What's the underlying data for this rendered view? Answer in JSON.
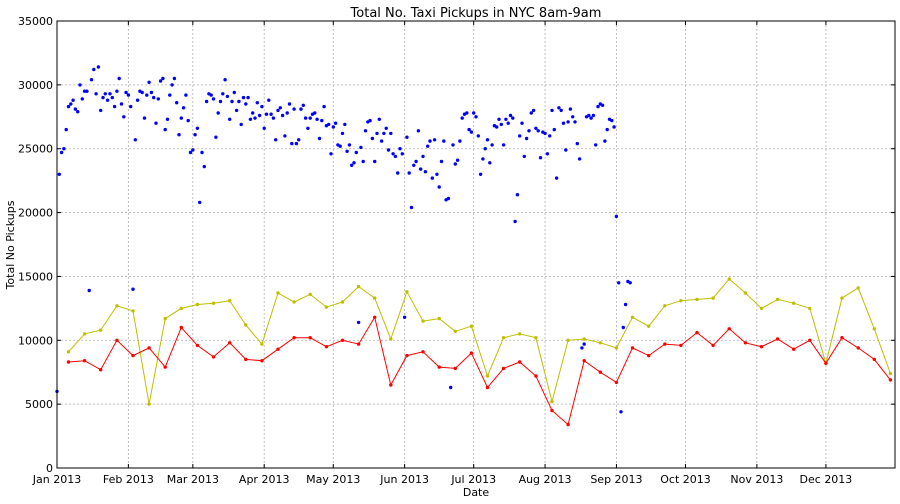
{
  "chart_data": {
    "type": "line",
    "title": "Total No. Taxi Pickups in NYC 8am-9am",
    "xlabel": "Date",
    "ylabel": "Total No Pickups",
    "xlim": [
      "2013-01-01",
      "2013-12-31"
    ],
    "ylim": [
      0,
      35000
    ],
    "grid": true,
    "x_ticks": [
      {
        "date": "2013-01-01",
        "label": "Jan 2013"
      },
      {
        "date": "2013-02-01",
        "label": "Feb 2013"
      },
      {
        "date": "2013-03-01",
        "label": "Mar 2013"
      },
      {
        "date": "2013-04-01",
        "label": "Apr 2013"
      },
      {
        "date": "2013-05-01",
        "label": "May 2013"
      },
      {
        "date": "2013-06-01",
        "label": "Jun 2013"
      },
      {
        "date": "2013-07-01",
        "label": "Jul 2013"
      },
      {
        "date": "2013-08-01",
        "label": "Aug 2013"
      },
      {
        "date": "2013-09-01",
        "label": "Sep 2013"
      },
      {
        "date": "2013-10-01",
        "label": "Oct 2013"
      },
      {
        "date": "2013-11-01",
        "label": "Nov 2013"
      },
      {
        "date": "2013-12-01",
        "label": "Dec 2013"
      }
    ],
    "y_ticks": [
      0,
      5000,
      10000,
      15000,
      20000,
      25000,
      30000,
      35000
    ],
    "series": [
      {
        "color": "#0000ff",
        "style": "scatter",
        "start_date": "2013-01-01",
        "values": [
          6000,
          23000,
          24700,
          25000,
          26500,
          28300,
          28500,
          28800,
          28100,
          27900,
          30000,
          28900,
          29500,
          29500,
          13900,
          30400,
          31200,
          29300,
          31400,
          28000,
          29000,
          29300,
          28800,
          29300,
          29000,
          28300,
          29500,
          30500,
          28500,
          27500,
          29400,
          29200,
          28300,
          14000,
          25700,
          28800,
          29500,
          29400,
          27400,
          29200,
          30200,
          29400,
          29000,
          27000,
          28900,
          30300,
          30500,
          26500,
          27300,
          29200,
          30000,
          30500,
          28600,
          26100,
          27400,
          28200,
          29200,
          27200,
          24700,
          24900,
          26100,
          26600,
          20800,
          24700,
          23600,
          28700,
          29300,
          29200,
          28900,
          25900,
          27800,
          28700,
          29300,
          30400,
          29100,
          27300,
          28700,
          29400,
          28000,
          28700,
          26900,
          29000,
          28500,
          29000,
          27300,
          27800,
          27400,
          28600,
          27600,
          28300,
          26600,
          27700,
          28800,
          27700,
          27400,
          25700,
          28000,
          28200,
          27600,
          26000,
          27800,
          28500,
          25400,
          28100,
          25400,
          25700,
          28100,
          28400,
          27400,
          26600,
          27400,
          27700,
          27800,
          27300,
          25800,
          27200,
          28300,
          26800,
          26900,
          24600,
          26700,
          27000,
          25300,
          25200,
          26200,
          26900,
          24800,
          25300,
          23700,
          23900,
          24700,
          11400,
          25100,
          24000,
          26400,
          27100,
          27200,
          25800,
          24000,
          26200,
          27300,
          25600,
          26200,
          26600,
          24900,
          26200,
          24600,
          24400,
          23100,
          25000,
          24600,
          11800,
          25900,
          23100,
          20400,
          23700,
          24000,
          26400,
          23400,
          24400,
          23200,
          25200,
          25600,
          22700,
          25700,
          23000,
          22000,
          24000,
          25600,
          21000,
          21100,
          6300,
          25300,
          23800,
          24100,
          25600,
          27400,
          27700,
          27800,
          26500,
          26300,
          27800,
          27500,
          26000,
          23000,
          24200,
          25000,
          25700,
          23900,
          25300,
          26800,
          26700,
          27300,
          26900,
          25300,
          27300,
          27000,
          27600,
          27400,
          19300,
          21400,
          26000,
          27000,
          24400,
          25800,
          26400,
          27800,
          28000,
          26600,
          26400,
          24300,
          26300,
          26200,
          24600,
          26000,
          28000,
          26500,
          22700,
          28200,
          28000,
          27000,
          24900,
          27100,
          28100,
          27500,
          27100,
          25400,
          24200,
          9400,
          9700,
          27500,
          27600,
          27400,
          27600,
          25300,
          28300,
          28500,
          28400,
          25600,
          26500,
          27300,
          27200,
          26700,
          19700,
          14500,
          4400,
          11000,
          12800,
          14600,
          14500
        ]
      },
      {
        "color": "#bfbf00",
        "style": "line",
        "dates": [
          "2013-01-06",
          "2013-01-13",
          "2013-01-20",
          "2013-01-27",
          "2013-02-03",
          "2013-02-10",
          "2013-02-17",
          "2013-02-24",
          "2013-03-03",
          "2013-03-10",
          "2013-03-17",
          "2013-03-24",
          "2013-03-31",
          "2013-04-07",
          "2013-04-14",
          "2013-04-21",
          "2013-04-28",
          "2013-05-05",
          "2013-05-12",
          "2013-05-19",
          "2013-05-26",
          "2013-06-02",
          "2013-06-09",
          "2013-06-16",
          "2013-06-23",
          "2013-06-30",
          "2013-07-07",
          "2013-07-14",
          "2013-07-21",
          "2013-07-28",
          "2013-08-04",
          "2013-08-11",
          "2013-08-18",
          "2013-08-25",
          "2013-09-01",
          "2013-09-08",
          "2013-09-15",
          "2013-09-22",
          "2013-09-29",
          "2013-10-06",
          "2013-10-13",
          "2013-10-20",
          "2013-10-27",
          "2013-11-03",
          "2013-11-10",
          "2013-11-17",
          "2013-11-24",
          "2013-12-01",
          "2013-12-08",
          "2013-12-15",
          "2013-12-22",
          "2013-12-29"
        ],
        "values": [
          9100,
          10500,
          10800,
          12700,
          12300,
          5000,
          11700,
          12500,
          12800,
          12900,
          13100,
          11200,
          9700,
          13700,
          13000,
          13600,
          12600,
          13000,
          14200,
          13300,
          10100,
          13800,
          11500,
          11700,
          10700,
          11100,
          7200,
          10200,
          10500,
          10200,
          5200,
          10000,
          10100,
          9800,
          9400,
          11800,
          11100,
          12700,
          13100,
          13200,
          13300,
          14800,
          13700,
          12500,
          13200,
          12900,
          12500,
          8200,
          13300,
          14100,
          10900,
          7400
        ]
      },
      {
        "color": "#ff0000",
        "style": "line",
        "dates": [
          "2013-01-06",
          "2013-01-13",
          "2013-01-20",
          "2013-01-27",
          "2013-02-03",
          "2013-02-10",
          "2013-02-17",
          "2013-02-24",
          "2013-03-03",
          "2013-03-10",
          "2013-03-17",
          "2013-03-24",
          "2013-03-31",
          "2013-04-07",
          "2013-04-14",
          "2013-04-21",
          "2013-04-28",
          "2013-05-05",
          "2013-05-12",
          "2013-05-19",
          "2013-05-26",
          "2013-06-02",
          "2013-06-09",
          "2013-06-16",
          "2013-06-23",
          "2013-06-30",
          "2013-07-07",
          "2013-07-14",
          "2013-07-21",
          "2013-07-28",
          "2013-08-04",
          "2013-08-11",
          "2013-08-18",
          "2013-08-25",
          "2013-09-01",
          "2013-09-08",
          "2013-09-15",
          "2013-09-22",
          "2013-09-29",
          "2013-10-06",
          "2013-10-13",
          "2013-10-20",
          "2013-10-27",
          "2013-11-03",
          "2013-11-10",
          "2013-11-17",
          "2013-11-24",
          "2013-12-01",
          "2013-12-08",
          "2013-12-15",
          "2013-12-22",
          "2013-12-29"
        ],
        "values": [
          8300,
          8400,
          7700,
          10000,
          8800,
          9400,
          7900,
          11000,
          9600,
          8700,
          9800,
          8500,
          8400,
          9300,
          10200,
          10200,
          9500,
          10000,
          9700,
          11800,
          6500,
          8800,
          9100,
          7900,
          7800,
          9000,
          6300,
          7800,
          8300,
          7200,
          4500,
          3400,
          8400,
          7500,
          6700,
          9400,
          8800,
          9700,
          9600,
          10600,
          9600,
          10900,
          9800,
          9500,
          10100,
          9300,
          10000,
          8200,
          10200,
          9400,
          8500,
          6900
        ]
      }
    ]
  }
}
